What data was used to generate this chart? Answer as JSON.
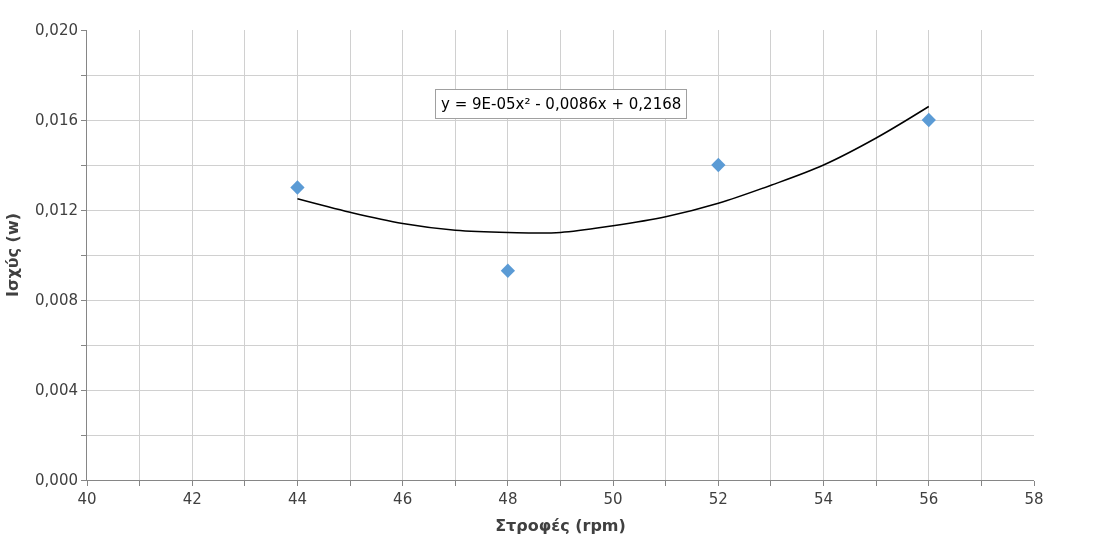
{
  "chart_data": {
    "type": "scatter",
    "xlabel": "Στροφές (rpm)",
    "ylabel": "Ισχύς (w)",
    "annotations": [
      "y = 9E-05x² - 0,0086x + 0,2168"
    ],
    "series": [
      {
        "color": "#5b9bd5",
        "marker": "diamond",
        "x": [
          44,
          48,
          52,
          56
        ],
        "values": [
          0.013,
          0.0093,
          0.014,
          0.016
        ]
      },
      {
        "type": "line",
        "color": "#000000",
        "marker": "none",
        "x": [
          44,
          45,
          46,
          47,
          48,
          49,
          50,
          51,
          52,
          53,
          54,
          55,
          56
        ],
        "values": [
          0.0125,
          0.0119,
          0.0114,
          0.0111,
          0.011,
          0.011,
          0.0113,
          0.0117,
          0.0123,
          0.0131,
          0.014,
          0.0152,
          0.0166
        ]
      }
    ],
    "xlim": [
      40,
      58
    ],
    "xticks": [
      40,
      {
        "value": 41,
        "label": null
      },
      42,
      {
        "value": 43,
        "label": null
      },
      44,
      {
        "value": 45,
        "label": null
      },
      46,
      {
        "value": 47,
        "label": null
      },
      48,
      {
        "value": 49,
        "label": null
      },
      50,
      {
        "value": 51,
        "label": null
      },
      52,
      {
        "value": 53,
        "label": null
      },
      54,
      {
        "value": 55,
        "label": null
      },
      56,
      {
        "value": 57,
        "label": null
      },
      58
    ],
    "ylim": [
      0,
      0.02
    ],
    "yticks": [
      {
        "value": 0,
        "label": "0,000"
      },
      {
        "value": 0.002,
        "label": null
      },
      {
        "value": 0.004,
        "label": "0,004"
      },
      {
        "value": 0.006,
        "label": null
      },
      {
        "value": 0.008,
        "label": "0,008"
      },
      {
        "value": 0.01,
        "label": null
      },
      {
        "value": 0.012,
        "label": "0,012"
      },
      {
        "value": 0.014,
        "label": null
      },
      {
        "value": 0.016,
        "label": "0,016"
      },
      {
        "value": 0.018,
        "label": null
      },
      {
        "value": 0.02,
        "label": "0,020"
      }
    ],
    "grid": true
  }
}
